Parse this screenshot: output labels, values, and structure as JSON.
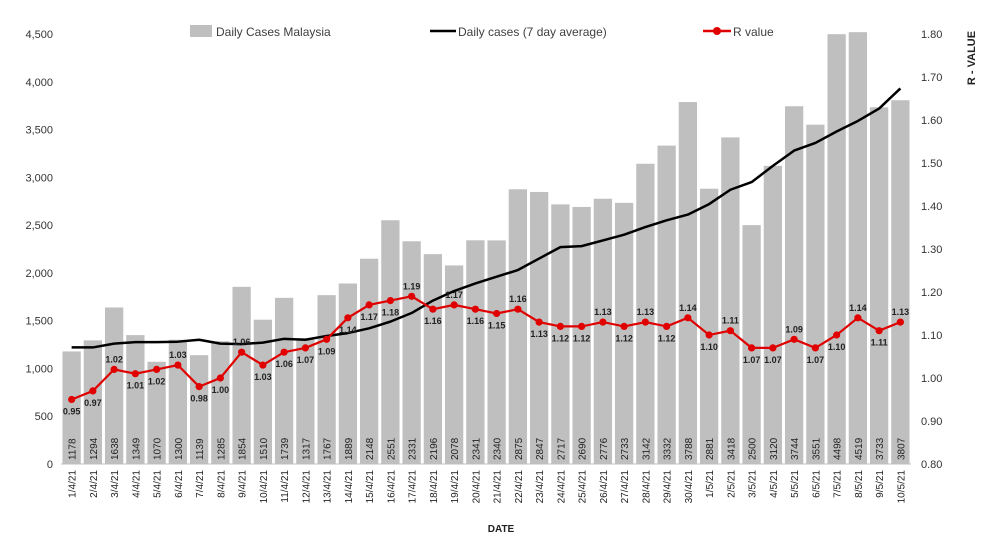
{
  "chart_data": {
    "type": "bar",
    "title": "",
    "xlabel": "DATE",
    "ylabel": "",
    "y2label": "R - VALUE",
    "categories": [
      "1/4/21",
      "2/4/21",
      "3/4/21",
      "4/4/21",
      "5/4/21",
      "6/4/21",
      "7/4/21",
      "8/4/21",
      "9/4/21",
      "10/4/21",
      "11/4/21",
      "12/4/21",
      "13/4/21",
      "14/4/21",
      "15/4/21",
      "16/4/21",
      "17/4/21",
      "18/4/21",
      "19/4/21",
      "20/4/21",
      "21/4/21",
      "22/4/21",
      "23/4/21",
      "24/4/21",
      "25/4/21",
      "26/4/21",
      "27/4/21",
      "28/4/21",
      "29/4/21",
      "30/4/21",
      "1/5/21",
      "2/5/21",
      "3/5/21",
      "4/5/21",
      "5/5/21",
      "6/5/21",
      "7/5/21",
      "8/5/21",
      "9/5/21",
      "10/5/21"
    ],
    "series": [
      {
        "name": "Daily Cases Malaysia",
        "type": "bar",
        "axis": "left",
        "color": "#bfbfbf",
        "values": [
          1178,
          1294,
          1638,
          1349,
          1070,
          1300,
          1139,
          1285,
          1854,
          1510,
          1739,
          1317,
          1767,
          1889,
          2148,
          2551,
          2331,
          2196,
          2078,
          2341,
          2340,
          2875,
          2847,
          2717,
          2690,
          2776,
          2733,
          3142,
          3332,
          3788,
          2881,
          3418,
          2500,
          3120,
          3744,
          3551,
          4498,
          4519,
          3733,
          3807
        ]
      },
      {
        "name": "Daily cases (7 day average)",
        "type": "line",
        "axis": "left",
        "color": "#000000",
        "values": [
          1220,
          1220,
          1260,
          1275,
          1275,
          1280,
          1300,
          1260,
          1255,
          1270,
          1310,
          1300,
          1340,
          1370,
          1420,
          1490,
          1580,
          1710,
          1810,
          1890,
          1960,
          2030,
          2150,
          2270,
          2280,
          2340,
          2400,
          2480,
          2550,
          2610,
          2720,
          2870,
          2950,
          3120,
          3280,
          3360,
          3480,
          3590,
          3720,
          3930
        ]
      },
      {
        "name": "R value",
        "type": "line",
        "axis": "right",
        "color": "#e00000",
        "values": [
          0.95,
          0.97,
          1.02,
          1.01,
          1.02,
          1.03,
          0.98,
          1.0,
          1.06,
          1.03,
          1.06,
          1.07,
          1.09,
          1.14,
          1.17,
          1.18,
          1.19,
          1.16,
          1.17,
          1.16,
          1.15,
          1.16,
          1.13,
          1.12,
          1.12,
          1.13,
          1.12,
          1.13,
          1.12,
          1.14,
          1.1,
          1.11,
          1.07,
          1.07,
          1.09,
          1.07,
          1.1,
          1.14,
          1.11,
          1.13
        ]
      }
    ],
    "ylim": [
      0,
      4500
    ],
    "y_ticks": [
      "0",
      "500",
      "1,000",
      "1,500",
      "2,000",
      "2,500",
      "3,000",
      "3,500",
      "4,000",
      "4,500"
    ],
    "y2lim": [
      0.8,
      1.8
    ],
    "y2_ticks": [
      "0.80",
      "0.90",
      "1.00",
      "1.10",
      "1.20",
      "1.30",
      "1.40",
      "1.50",
      "1.60",
      "1.70",
      "1.80"
    ],
    "grid": false,
    "legend_position": "top",
    "legend": [
      "Daily Cases Malaysia",
      "Daily cases (7 day average)",
      "R value"
    ]
  }
}
